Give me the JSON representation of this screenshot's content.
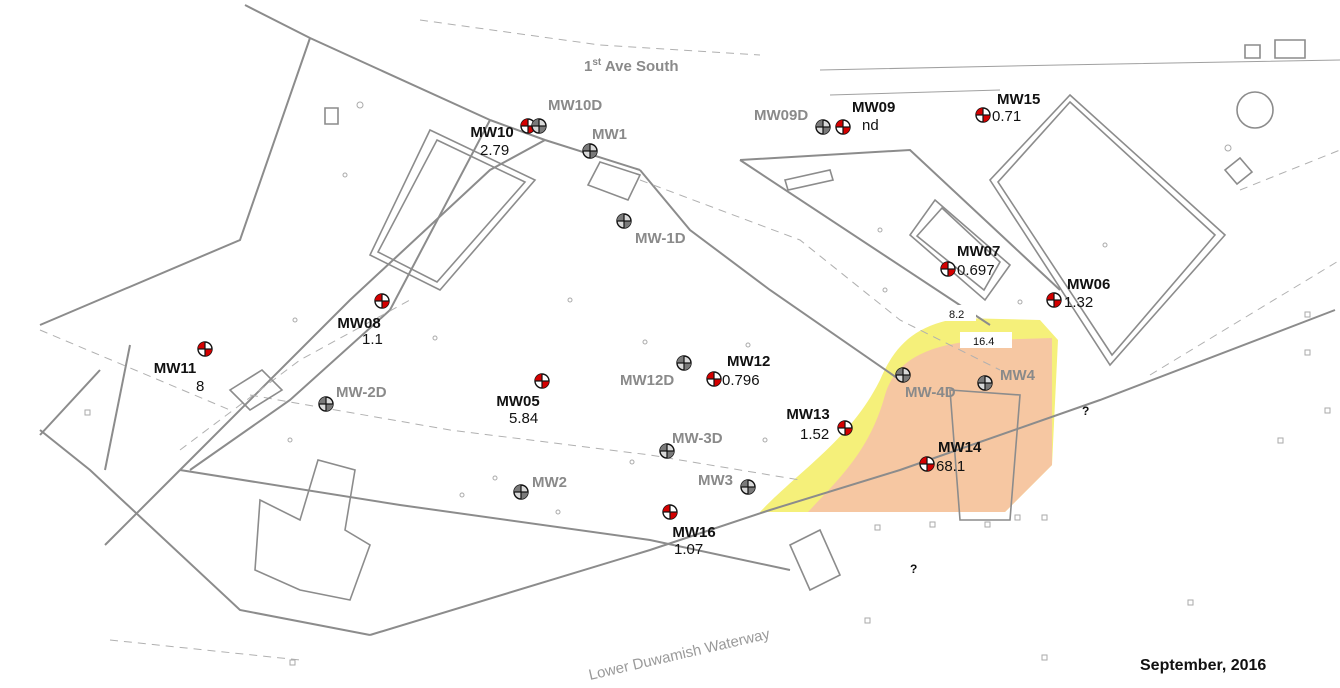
{
  "map": {
    "road_label": "1",
    "road_label_sup": "st",
    "road_label_rest": " Ave South",
    "waterway_label": "Lower Duwamish Waterway",
    "date_label": "September, 2016",
    "unknown_marker": "?",
    "contours": [
      {
        "label": "8.2",
        "color": "#f5f07a"
      },
      {
        "label": "16.4",
        "color": "#f6c7a2"
      }
    ],
    "sampled_wells": [
      {
        "id": "MW10",
        "value": "2.79"
      },
      {
        "id": "MW09",
        "value": "nd"
      },
      {
        "id": "MW15",
        "value": "0.71"
      },
      {
        "id": "MW07",
        "value": "0.697"
      },
      {
        "id": "MW06",
        "value": "1.32"
      },
      {
        "id": "MW08",
        "value": "1.1"
      },
      {
        "id": "MW11",
        "value": "8"
      },
      {
        "id": "MW05",
        "value": "5.84"
      },
      {
        "id": "MW12",
        "value": "0.796"
      },
      {
        "id": "MW13",
        "value": "1.52"
      },
      {
        "id": "MW14",
        "value": "68.1"
      },
      {
        "id": "MW16",
        "value": "1.07"
      }
    ],
    "other_wells": [
      "MW10D",
      "MW1",
      "MW09D",
      "MW-1D",
      "MW-2D",
      "MW12D",
      "MW-3D",
      "MW2",
      "MW3",
      "MW-4D",
      "MW4"
    ]
  }
}
